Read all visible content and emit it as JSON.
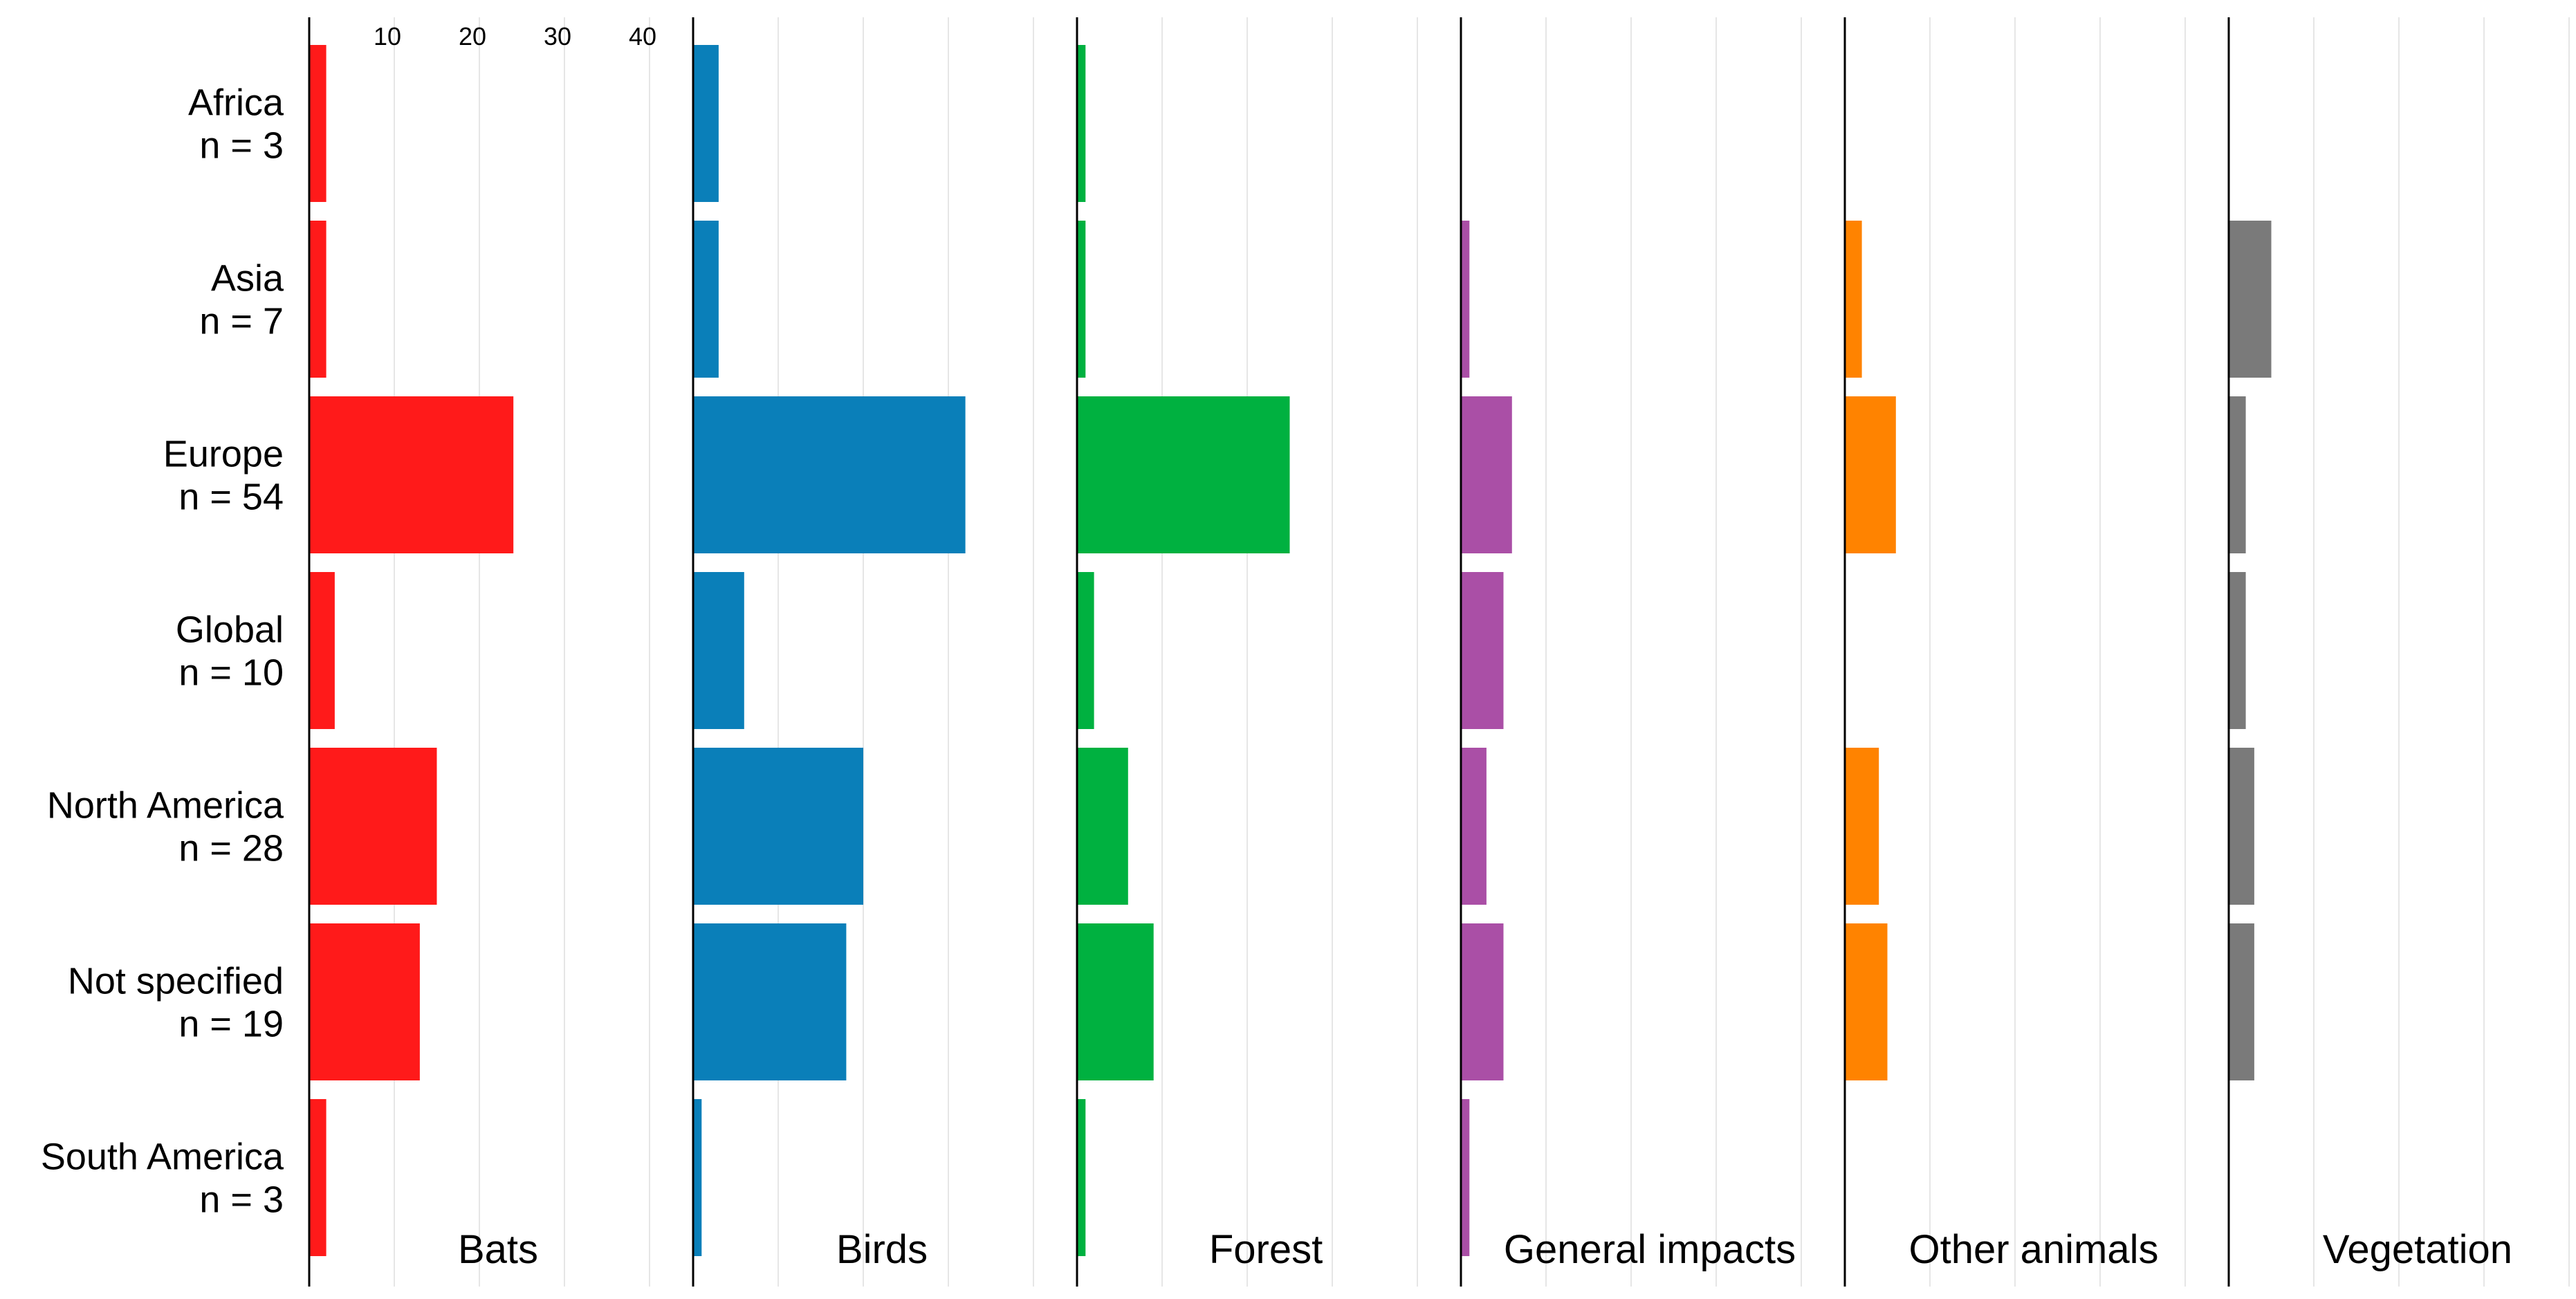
{
  "chart_data": {
    "type": "bar",
    "orientation": "horizontal",
    "layout": "small-multiples",
    "categories": [
      "Africa",
      "Asia",
      "Europe",
      "Global",
      "North America",
      "Not specified",
      "South America"
    ],
    "category_n_labels": [
      "n = 3",
      "n = 7",
      "n = 54",
      "n = 10",
      "n = 28",
      "n = 19",
      "n = 3"
    ],
    "x_ticks": [
      10,
      20,
      30,
      40
    ],
    "x_tick_labels": [
      "10",
      "20",
      "30",
      "40"
    ],
    "xlim": [
      0,
      45
    ],
    "grid": true,
    "series": [
      {
        "name": "Bats",
        "color": "#FF1A1A",
        "values": [
          2,
          2,
          24,
          3,
          15,
          13,
          2
        ]
      },
      {
        "name": "Birds",
        "color": "#0A7FB9",
        "values": [
          3,
          3,
          32,
          6,
          20,
          18,
          1
        ]
      },
      {
        "name": "Forest",
        "color": "#00B140",
        "values": [
          1,
          1,
          25,
          2,
          6,
          9,
          1
        ]
      },
      {
        "name": "General impacts",
        "color": "#AA4FA6",
        "values": [
          0,
          1,
          6,
          5,
          3,
          5,
          1
        ]
      },
      {
        "name": "Other animals",
        "color": "#FF8300",
        "values": [
          0,
          2,
          6,
          0,
          4,
          5,
          0
        ]
      },
      {
        "name": "Vegetation",
        "color": "#7A7A7A",
        "values": [
          0,
          5,
          2,
          2,
          3,
          3,
          0
        ]
      }
    ]
  }
}
